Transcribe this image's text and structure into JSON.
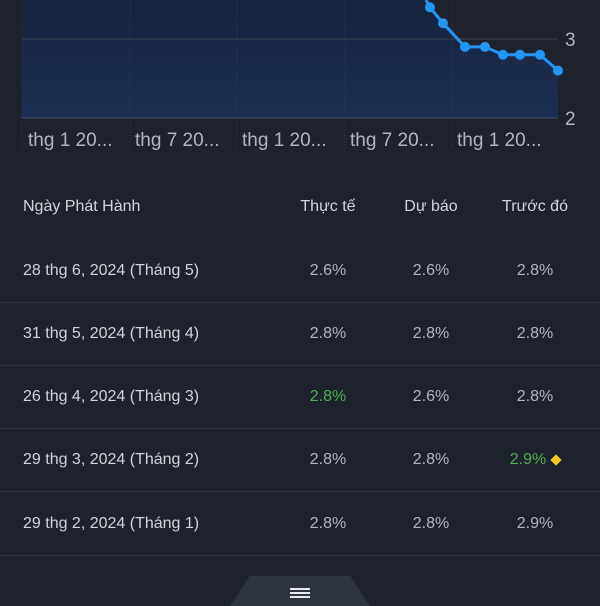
{
  "chart_data": {
    "type": "area",
    "x_tick_labels": [
      "thg 1 20...",
      "thg 7 20...",
      "thg 1 20...",
      "thg 7 20...",
      "thg 1 20..."
    ],
    "y_tick_labels": [
      "3",
      "2"
    ],
    "series_values": [
      3.4,
      3.2,
      2.9,
      2.9,
      2.8,
      2.8,
      2.8,
      2.6
    ],
    "line_color": "#2196f3",
    "fill_color": "#1b2b48"
  },
  "table": {
    "headers": {
      "date": "Ngày Phát Hành",
      "actual": "Thực tế",
      "forecast": "Dự báo",
      "previous": "Trước đó"
    },
    "rows": [
      {
        "date": "28 thg 6, 2024 (Tháng 5)",
        "actual": "2.6%",
        "forecast": "2.6%",
        "previous": "2.8%"
      },
      {
        "date": "31 thg 5, 2024 (Tháng 4)",
        "actual": "2.8%",
        "forecast": "2.8%",
        "previous": "2.8%"
      },
      {
        "date": "26 thg 4, 2024 (Tháng 3)",
        "actual": "2.8%",
        "forecast": "2.6%",
        "previous": "2.8%"
      },
      {
        "date": "29 thg 3, 2024 (Tháng 2)",
        "actual": "2.8%",
        "forecast": "2.8%",
        "previous": "2.9%"
      },
      {
        "date": "29 thg 2, 2024 (Tháng 1)",
        "actual": "2.8%",
        "forecast": "2.8%",
        "previous": "2.9%"
      }
    ]
  },
  "colors": {
    "positive": "#4caf50",
    "revised_marker": "#f7c325"
  },
  "handle": {
    "icon": "menu-icon"
  }
}
